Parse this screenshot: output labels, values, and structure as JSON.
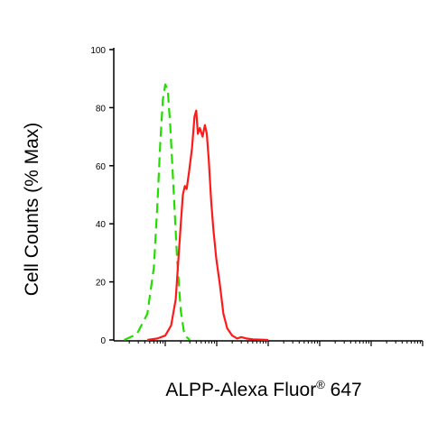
{
  "chart_data": {
    "type": "line",
    "title": "",
    "xlabel": "ALPP-Alexa Fluor",
    "xlabel_superscript": "®",
    "xlabel_suffix": " 647",
    "ylabel": "Cell Counts (% Max)",
    "x_scale": "log",
    "x_decades": [
      1,
      10,
      100,
      1000,
      10000,
      100000,
      1000000
    ],
    "x_tick_labels_shown": false,
    "ylim": [
      0,
      100
    ],
    "yticks": [
      0,
      20,
      40,
      60,
      80,
      100
    ],
    "ytick_labels": [
      "0",
      "20",
      "40",
      "60",
      "80",
      "100"
    ],
    "grid": false,
    "series": [
      {
        "style": "dashed",
        "color": "#22dd00",
        "x": [
          1.6,
          2.8,
          4.5,
          6.0,
          7.0,
          8.0,
          9.0,
          10.0,
          11.2,
          12.5,
          14.5,
          17.0,
          20.0,
          23.0,
          26.0,
          30.0
        ],
        "y": [
          0,
          2,
          9,
          25,
          46,
          68,
          83,
          88,
          86,
          74,
          52,
          28,
          10,
          3,
          1,
          0
        ]
      },
      {
        "style": "solid",
        "color": "#ff1a1a",
        "x": [
          4.5,
          7.0,
          10.0,
          13.0,
          16.0,
          18.0,
          20.0,
          22.0,
          24.0,
          26.0,
          29.0,
          33.0,
          37.0,
          40.0,
          43.0,
          47.0,
          53.0,
          59.0,
          64.0,
          70.0,
          78.0,
          86.0,
          98.0,
          115.0,
          135.0,
          160.0,
          200.0,
          250.0,
          300.0,
          380.0,
          500.0,
          1000.0
        ],
        "y": [
          0,
          0.5,
          1.5,
          5,
          14,
          28,
          40,
          50,
          53,
          52,
          58,
          66,
          77,
          79,
          71,
          73,
          70,
          74,
          71,
          62,
          48,
          38,
          28,
          19,
          9,
          4,
          1.5,
          0.5,
          1,
          0.5,
          0.2,
          0
        ]
      }
    ]
  }
}
